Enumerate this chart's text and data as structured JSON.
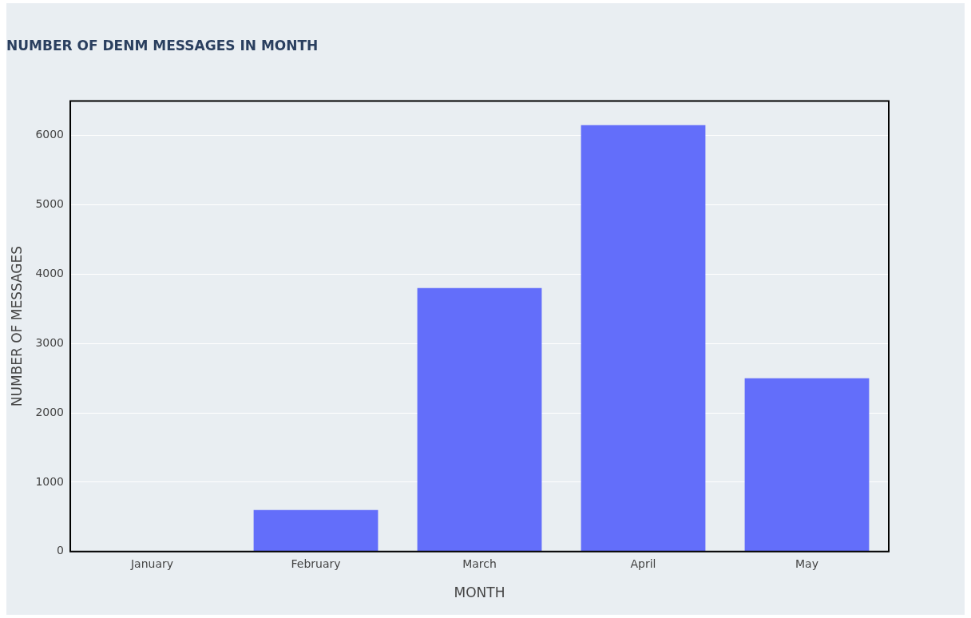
{
  "chart_data": {
    "type": "bar",
    "title": "NUMBER OF DENM MESSAGES IN MONTH",
    "xlabel": "MONTH",
    "ylabel": "NUMBER OF MESSAGES",
    "categories": [
      "January",
      "February",
      "March",
      "April",
      "May"
    ],
    "values": [
      0,
      600,
      3800,
      6150,
      2500
    ],
    "color": "#636efa",
    "ylim": [
      0,
      6500
    ],
    "yticks": [
      0,
      1000,
      2000,
      3000,
      4000,
      5000,
      6000
    ],
    "grid": "y",
    "legend": false
  }
}
